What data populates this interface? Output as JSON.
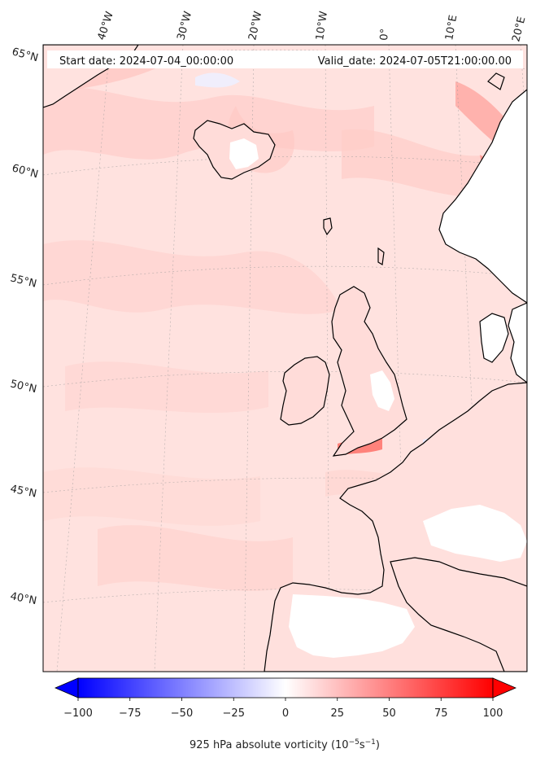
{
  "header": {
    "start_date": "Start date: 2024-07-04_00:00:00",
    "valid_date": "Valid_date: 2024-07-05T21:00:00.00"
  },
  "longitude_labels": [
    "40°W",
    "30°W",
    "20°W",
    "10°W",
    "0°",
    "10°E",
    "20°E"
  ],
  "latitude_labels": [
    "65°N",
    "60°N",
    "55°N",
    "50°N",
    "45°N",
    "40°N"
  ],
  "colorbar": {
    "min": -100,
    "max": 100,
    "ticks": [
      "−100",
      "−75",
      "−50",
      "−25",
      "0",
      "25",
      "50",
      "75",
      "100"
    ],
    "label_main": "925 hPa absolute vorticity (10",
    "label_sup1": "−5",
    "label_mid": "s",
    "label_sup2": "−1",
    "label_end": ")",
    "colors": {
      "low": "#0000ff",
      "mid": "#ffffff",
      "high": "#ff0000"
    }
  },
  "colors": {
    "field_background": "#ffe0de",
    "field_light": "#ffc9c5",
    "field_strong": "#ff7d75",
    "land_white": "#ffffff",
    "coastline": "#000000"
  }
}
